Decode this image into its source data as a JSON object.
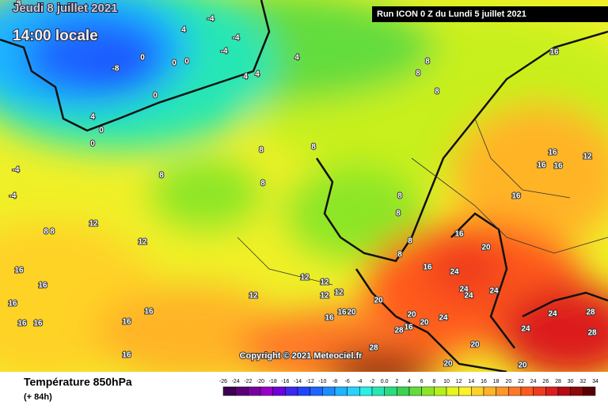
{
  "header": {
    "date": "Jeudi 8 juillet 2021",
    "time": "14:00 locale",
    "run": "Run ICON 0 Z du Lundi 5 juillet 2021"
  },
  "map": {
    "copyright": "Copyright © 2021 Meteociel.fr",
    "contour_labels": [
      -8,
      -4,
      -4,
      4,
      0,
      0,
      0,
      -8,
      -4,
      4,
      4,
      4,
      0,
      4,
      0,
      0,
      -4,
      -4,
      12,
      8,
      8,
      8,
      8,
      8,
      8,
      8,
      8,
      8,
      8,
      8,
      8,
      8,
      12,
      12,
      12,
      16,
      16,
      16,
      16,
      16,
      16,
      16,
      16,
      12,
      12,
      12,
      16,
      16,
      20,
      20,
      20,
      24,
      24,
      24,
      24,
      24,
      20,
      20,
      16,
      16,
      16,
      16,
      16,
      16,
      12,
      16,
      24,
      28,
      28,
      24,
      20,
      20,
      20,
      16,
      28,
      28
    ]
  },
  "footer": {
    "title": "Température 850hPa",
    "lead": "(+ 84h)"
  },
  "legend": {
    "ticks": [
      -26,
      -24,
      -22,
      -20,
      -18,
      -16,
      -14,
      -12,
      -10,
      -8,
      -6,
      -4,
      -2,
      {
        "value": 0,
        "label": "0.0"
      },
      2,
      4,
      6,
      8,
      10,
      12,
      14,
      16,
      18,
      20,
      22,
      24,
      26,
      28,
      30,
      32,
      34
    ],
    "colors": [
      "#3c0050",
      "#5a0078",
      "#7800a0",
      "#9600c8",
      "#6e00dc",
      "#3c28f0",
      "#1e46ff",
      "#1e64ff",
      "#1e8cff",
      "#1eb4ff",
      "#28d2ff",
      "#28f0e6",
      "#28e6b4",
      "#28dc82",
      "#3cd250",
      "#64dc3c",
      "#8ce628",
      "#b4f01e",
      "#e6f51e",
      "#fff028",
      "#ffd228",
      "#ffb428",
      "#ff9628",
      "#ff7828",
      "#ff5a1e",
      "#f03c1e",
      "#dc1e1e",
      "#b40a14",
      "#8c0a0a",
      "#5a0000"
    ]
  }
}
